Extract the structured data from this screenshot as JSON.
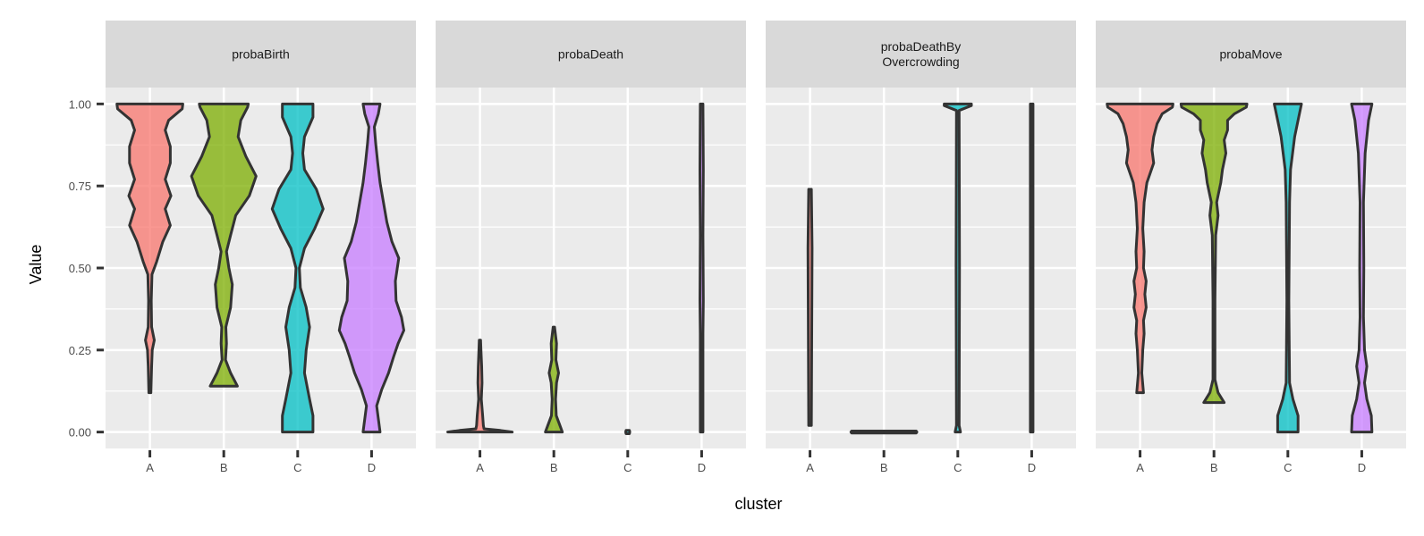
{
  "chart_data": {
    "type": "violin",
    "xlabel": "cluster",
    "ylabel": "Value",
    "ylim": [
      -0.05,
      1.05
    ],
    "y_ticks": [
      "0.00",
      "0.25",
      "0.50",
      "0.75",
      "1.00"
    ],
    "categories": [
      "A",
      "B",
      "C",
      "D"
    ],
    "colors": {
      "A": "#f8766d",
      "B": "#7cae00",
      "C": "#00bfc4",
      "D": "#c77cff"
    },
    "facet_background": "#ebebeb",
    "strip_background": "#d9d9d9",
    "grid": true,
    "legend": "none",
    "facets": [
      {
        "name": "probaBirth",
        "strip": [
          "probaBirth"
        ],
        "violins": [
          {
            "cluster": "A",
            "profile": [
              [
                0.12,
                0.03
              ],
              [
                0.2,
                0.05
              ],
              [
                0.25,
                0.07
              ],
              [
                0.28,
                0.13
              ],
              [
                0.32,
                0.05
              ],
              [
                0.4,
                0.04
              ],
              [
                0.48,
                0.06
              ],
              [
                0.52,
                0.2
              ],
              [
                0.58,
                0.38
              ],
              [
                0.63,
                0.6
              ],
              [
                0.68,
                0.45
              ],
              [
                0.72,
                0.62
              ],
              [
                0.77,
                0.45
              ],
              [
                0.82,
                0.6
              ],
              [
                0.87,
                0.6
              ],
              [
                0.92,
                0.45
              ],
              [
                0.95,
                0.55
              ],
              [
                0.985,
                0.95
              ],
              [
                1.0,
                0.97
              ]
            ]
          },
          {
            "cluster": "B",
            "profile": [
              [
                0.14,
                0.4
              ],
              [
                0.18,
                0.2
              ],
              [
                0.22,
                0.05
              ],
              [
                0.27,
                0.08
              ],
              [
                0.32,
                0.06
              ],
              [
                0.38,
                0.2
              ],
              [
                0.45,
                0.25
              ],
              [
                0.5,
                0.15
              ],
              [
                0.55,
                0.08
              ],
              [
                0.6,
                0.2
              ],
              [
                0.66,
                0.35
              ],
              [
                0.72,
                0.75
              ],
              [
                0.78,
                0.95
              ],
              [
                0.84,
                0.65
              ],
              [
                0.9,
                0.42
              ],
              [
                0.95,
                0.5
              ],
              [
                0.99,
                0.7
              ],
              [
                1.0,
                0.72
              ]
            ]
          },
          {
            "cluster": "C",
            "profile": [
              [
                0.0,
                0.45
              ],
              [
                0.05,
                0.45
              ],
              [
                0.1,
                0.35
              ],
              [
                0.18,
                0.2
              ],
              [
                0.25,
                0.25
              ],
              [
                0.32,
                0.35
              ],
              [
                0.38,
                0.25
              ],
              [
                0.44,
                0.08
              ],
              [
                0.5,
                0.05
              ],
              [
                0.56,
                0.2
              ],
              [
                0.62,
                0.5
              ],
              [
                0.68,
                0.75
              ],
              [
                0.74,
                0.55
              ],
              [
                0.8,
                0.2
              ],
              [
                0.85,
                0.15
              ],
              [
                0.9,
                0.2
              ],
              [
                0.96,
                0.45
              ],
              [
                1.0,
                0.45
              ]
            ]
          },
          {
            "cluster": "D",
            "profile": [
              [
                0.0,
                0.25
              ],
              [
                0.04,
                0.2
              ],
              [
                0.08,
                0.15
              ],
              [
                0.13,
                0.3
              ],
              [
                0.18,
                0.5
              ],
              [
                0.23,
                0.65
              ],
              [
                0.27,
                0.78
              ],
              [
                0.31,
                0.95
              ],
              [
                0.35,
                0.88
              ],
              [
                0.4,
                0.72
              ],
              [
                0.46,
                0.7
              ],
              [
                0.53,
                0.8
              ],
              [
                0.58,
                0.6
              ],
              [
                0.64,
                0.45
              ],
              [
                0.7,
                0.35
              ],
              [
                0.76,
                0.25
              ],
              [
                0.82,
                0.18
              ],
              [
                0.88,
                0.12
              ],
              [
                0.93,
                0.08
              ],
              [
                0.97,
                0.2
              ],
              [
                1.0,
                0.25
              ]
            ]
          }
        ]
      },
      {
        "name": "probaDeath",
        "strip": [
          "probaDeath"
        ],
        "violins": [
          {
            "cluster": "A",
            "profile": [
              [
                0.0,
                0.95
              ],
              [
                0.005,
                0.6
              ],
              [
                0.01,
                0.12
              ],
              [
                0.02,
                0.1
              ],
              [
                0.05,
                0.08
              ],
              [
                0.1,
                0.04
              ],
              [
                0.15,
                0.06
              ],
              [
                0.2,
                0.05
              ],
              [
                0.25,
                0.03
              ],
              [
                0.28,
                0.02
              ]
            ]
          },
          {
            "cluster": "B",
            "profile": [
              [
                0.0,
                0.25
              ],
              [
                0.02,
                0.18
              ],
              [
                0.05,
                0.07
              ],
              [
                0.1,
                0.05
              ],
              [
                0.15,
                0.08
              ],
              [
                0.18,
                0.14
              ],
              [
                0.22,
                0.06
              ],
              [
                0.27,
                0.08
              ],
              [
                0.32,
                0.02
              ]
            ]
          },
          {
            "cluster": "C",
            "profile": [
              [
                -0.005,
                0.05
              ],
              [
                0.0,
                0.06
              ],
              [
                0.005,
                0.05
              ]
            ]
          },
          {
            "cluster": "D",
            "profile": [
              [
                0.0,
                0.04
              ],
              [
                0.3,
                0.04
              ],
              [
                0.4,
                0.05
              ],
              [
                0.6,
                0.04
              ],
              [
                0.8,
                0.05
              ],
              [
                1.0,
                0.04
              ]
            ]
          }
        ]
      },
      {
        "name": "probaDeathByOvercrowding",
        "strip": [
          "probaDeathBy",
          "Overcrowding"
        ],
        "violins": [
          {
            "cluster": "A",
            "profile": [
              [
                0.02,
                0.04
              ],
              [
                0.3,
                0.05
              ],
              [
                0.56,
                0.06
              ],
              [
                0.74,
                0.04
              ]
            ]
          },
          {
            "cluster": "B",
            "profile": [
              [
                -0.003,
                0.95
              ],
              [
                0.0,
                0.97
              ],
              [
                0.003,
                0.95
              ]
            ]
          },
          {
            "cluster": "C",
            "profile": [
              [
                0.0,
                0.08
              ],
              [
                0.02,
                0.04
              ],
              [
                0.5,
                0.05
              ],
              [
                0.98,
                0.04
              ],
              [
                0.995,
                0.4
              ],
              [
                1.0,
                0.4
              ]
            ]
          },
          {
            "cluster": "D",
            "profile": [
              [
                0.0,
                0.04
              ],
              [
                1.0,
                0.04
              ]
            ]
          }
        ]
      },
      {
        "name": "probaMove",
        "strip": [
          "probaMove"
        ],
        "violins": [
          {
            "cluster": "A",
            "profile": [
              [
                0.12,
                0.1
              ],
              [
                0.18,
                0.05
              ],
              [
                0.25,
                0.08
              ],
              [
                0.3,
                0.12
              ],
              [
                0.34,
                0.1
              ],
              [
                0.38,
                0.18
              ],
              [
                0.42,
                0.14
              ],
              [
                0.46,
                0.18
              ],
              [
                0.5,
                0.1
              ],
              [
                0.55,
                0.12
              ],
              [
                0.62,
                0.08
              ],
              [
                0.7,
                0.12
              ],
              [
                0.76,
                0.2
              ],
              [
                0.82,
                0.4
              ],
              [
                0.86,
                0.35
              ],
              [
                0.9,
                0.4
              ],
              [
                0.94,
                0.5
              ],
              [
                0.97,
                0.65
              ],
              [
                0.99,
                0.95
              ],
              [
                1.0,
                0.97
              ]
            ]
          },
          {
            "cluster": "B",
            "profile": [
              [
                0.09,
                0.3
              ],
              [
                0.12,
                0.12
              ],
              [
                0.16,
                0.03
              ],
              [
                0.4,
                0.03
              ],
              [
                0.6,
                0.05
              ],
              [
                0.66,
                0.12
              ],
              [
                0.7,
                0.08
              ],
              [
                0.76,
                0.2
              ],
              [
                0.8,
                0.25
              ],
              [
                0.85,
                0.35
              ],
              [
                0.89,
                0.3
              ],
              [
                0.92,
                0.4
              ],
              [
                0.95,
                0.4
              ],
              [
                0.97,
                0.6
              ],
              [
                0.99,
                0.95
              ],
              [
                1.0,
                0.97
              ]
            ]
          },
          {
            "cluster": "C",
            "profile": [
              [
                0.0,
                0.3
              ],
              [
                0.05,
                0.3
              ],
              [
                0.1,
                0.15
              ],
              [
                0.15,
                0.05
              ],
              [
                0.4,
                0.03
              ],
              [
                0.7,
                0.05
              ],
              [
                0.8,
                0.08
              ],
              [
                0.9,
                0.2
              ],
              [
                0.95,
                0.3
              ],
              [
                1.0,
                0.4
              ]
            ]
          },
          {
            "cluster": "D",
            "profile": [
              [
                0.0,
                0.3
              ],
              [
                0.05,
                0.28
              ],
              [
                0.1,
                0.15
              ],
              [
                0.15,
                0.08
              ],
              [
                0.2,
                0.15
              ],
              [
                0.25,
                0.08
              ],
              [
                0.35,
                0.05
              ],
              [
                0.5,
                0.06
              ],
              [
                0.7,
                0.05
              ],
              [
                0.85,
                0.1
              ],
              [
                0.95,
                0.2
              ],
              [
                1.0,
                0.3
              ]
            ]
          }
        ]
      }
    ]
  }
}
